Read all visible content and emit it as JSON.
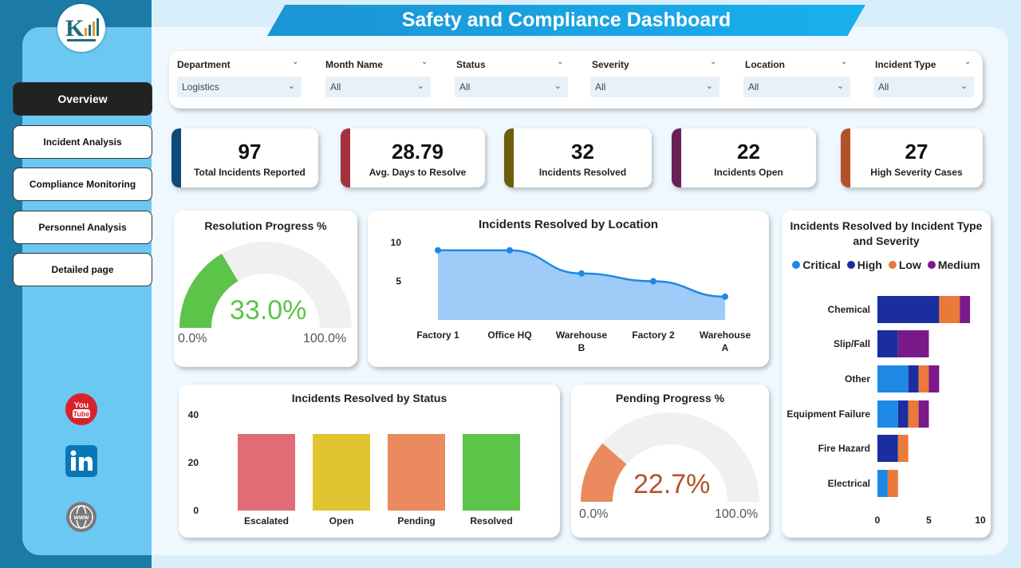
{
  "title": "Safety and Compliance Dashboard",
  "nav": [
    {
      "label": "Overview",
      "active": true
    },
    {
      "label": "Incident Analysis",
      "active": false
    },
    {
      "label": "Compliance Monitoring",
      "active": false
    },
    {
      "label": "Personnel Analysis",
      "active": false
    },
    {
      "label": "Detailed page",
      "active": false
    }
  ],
  "filters": [
    {
      "label": "Department",
      "value": "Logistics"
    },
    {
      "label": "Month Name",
      "value": "All"
    },
    {
      "label": "Status",
      "value": "All"
    },
    {
      "label": "Severity",
      "value": "All"
    },
    {
      "label": "Location",
      "value": "All"
    },
    {
      "label": "Incident Type",
      "value": "All"
    }
  ],
  "kpis": [
    {
      "value": "97",
      "label": "Total Incidents Reported",
      "color": "#0d4a7a"
    },
    {
      "value": "28.79",
      "label": "Avg. Days to Resolve",
      "color": "#a5303e"
    },
    {
      "value": "32",
      "label": "Incidents Resolved",
      "color": "#6b5d0a"
    },
    {
      "value": "22",
      "label": "Incidents Open",
      "color": "#6b1f57"
    },
    {
      "value": "27",
      "label": "High Severity Cases",
      "color": "#b0532b"
    }
  ],
  "resolution_gauge": {
    "title": "Resolution Progress %",
    "value_label": "33.0%",
    "fraction": 0.33,
    "min_label": "0.0%",
    "max_label": "100.0%",
    "color": "#5cc448"
  },
  "pending_gauge": {
    "title": "Pending Progress %",
    "value_label": "22.7%",
    "fraction": 0.227,
    "min_label": "0.0%",
    "max_label": "100.0%",
    "color": "#eb8a5e"
  },
  "chart_data": [
    {
      "type": "area",
      "title": "Incidents Resolved by Location",
      "categories": [
        "Factory 1",
        "Office HQ",
        "Warehouse B",
        "Factory 2",
        "Warehouse A"
      ],
      "values": [
        9,
        9,
        6,
        5,
        3
      ],
      "yticks": [
        5,
        10
      ],
      "ylim": [
        0,
        10
      ],
      "color": "#1e88e5",
      "fill": "#9ecbf7"
    },
    {
      "type": "bar",
      "title": "Incidents Resolved by Status",
      "categories": [
        "Escalated",
        "Open",
        "Pending",
        "Resolved"
      ],
      "values": [
        32,
        32,
        32,
        32
      ],
      "colors": [
        "#e26c76",
        "#e0c430",
        "#eb8a5e",
        "#5cc448"
      ],
      "yticks": [
        0,
        20,
        40
      ],
      "ylim": [
        0,
        40
      ]
    },
    {
      "type": "bar",
      "orientation": "horizontal-stacked",
      "title": "Incidents Resolved by Incident Type and Severity",
      "categories": [
        "Chemical",
        "Slip/Fall",
        "Other",
        "Equipment Failure",
        "Fire Hazard",
        "Electrical"
      ],
      "series": [
        {
          "name": "Critical",
          "color": "#1e88e5",
          "values": [
            0,
            0,
            3,
            2,
            0,
            1
          ]
        },
        {
          "name": "High",
          "color": "#1a2ea0",
          "values": [
            6,
            2,
            1,
            1,
            2,
            0
          ]
        },
        {
          "name": "Low",
          "color": "#eb7a3a",
          "values": [
            2,
            0,
            1,
            1,
            1,
            1
          ]
        },
        {
          "name": "Medium",
          "color": "#7a1a8a",
          "values": [
            1,
            3,
            1,
            1,
            0,
            0
          ]
        }
      ],
      "xticks": [
        0,
        5,
        10
      ],
      "xlim": [
        0,
        10
      ]
    }
  ],
  "social": [
    "youtube-icon",
    "linkedin-icon",
    "website-icon"
  ]
}
